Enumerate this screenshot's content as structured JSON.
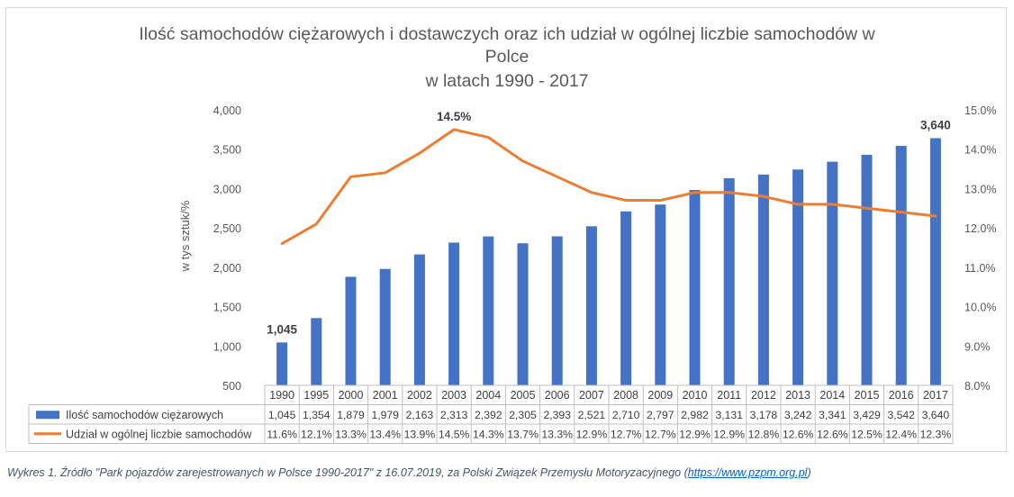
{
  "chart_data": {
    "type": "bar",
    "title_lines": [
      "Ilość samochodów ciężarowych i dostawczych oraz ich udział w ogólnej liczbie samochodów w",
      "Polce",
      "w latach 1990 - 2017"
    ],
    "ylabel": "w tys sztuk/%",
    "categories": [
      "1990",
      "1995",
      "2000",
      "2001",
      "2002",
      "2003",
      "2004",
      "2005",
      "2006",
      "2007",
      "2008",
      "2009",
      "2010",
      "2011",
      "2012",
      "2013",
      "2014",
      "2015",
      "2016",
      "2017"
    ],
    "ylim": [
      500,
      4000
    ],
    "y_ticks": [
      "500",
      "1,000",
      "1,500",
      "2,000",
      "2,500",
      "3,000",
      "3,500",
      "4,000"
    ],
    "y2lim": [
      8.0,
      15.0
    ],
    "y2_ticks": [
      "8.0%",
      "9.0%",
      "10.0%",
      "11.0%",
      "12.0%",
      "13.0%",
      "14.0%",
      "15.0%"
    ],
    "series": [
      {
        "name": "Ilość samochodów ciężarowych",
        "type": "bar",
        "axis": "primary",
        "color": "#4472c4",
        "values": [
          1045,
          1354,
          1879,
          1979,
          2163,
          2313,
          2392,
          2305,
          2393,
          2521,
          2710,
          2797,
          2982,
          3131,
          3178,
          3242,
          3341,
          3429,
          3542,
          3640
        ],
        "table_values": [
          "1,045",
          "1,354",
          "1,879",
          "1,979",
          "2,163",
          "2,313",
          "2,392",
          "2,305",
          "2,393",
          "2,521",
          "2,710",
          "2,797",
          "2,982",
          "3,131",
          "3,178",
          "3,242",
          "3,341",
          "3,429",
          "3,542",
          "3,640"
        ]
      },
      {
        "name": "Udział w ogólnej liczbie samochodów",
        "type": "line",
        "axis": "secondary",
        "color": "#ed7d31",
        "values": [
          11.6,
          12.1,
          13.3,
          13.4,
          13.9,
          14.5,
          14.3,
          13.7,
          13.3,
          12.9,
          12.7,
          12.7,
          12.9,
          12.9,
          12.8,
          12.6,
          12.6,
          12.5,
          12.4,
          12.3
        ],
        "table_values": [
          "11.6%",
          "12.1%",
          "13.3%",
          "13.4%",
          "13.9%",
          "14.5%",
          "14.3%",
          "13.7%",
          "13.3%",
          "12.9%",
          "12.7%",
          "12.7%",
          "12.9%",
          "12.9%",
          "12.8%",
          "12.6%",
          "12.6%",
          "12.5%",
          "12.4%",
          "12.3%"
        ]
      }
    ],
    "annotations": [
      {
        "label": "1,045",
        "series": 0,
        "index": 0
      },
      {
        "label": "3,640",
        "series": 0,
        "index": 19
      },
      {
        "label": "14.5%",
        "series": 1,
        "index": 5
      }
    ],
    "grid": false,
    "legend": "data-table"
  },
  "caption": {
    "text": "Wykres 1. Źródło \"Park pojazdów zarejestrowanych w Polsce 1990-2017\" z 16.07.2019, za Polski Związek Przemysłu Motoryzacyjnego (",
    "link": "https://www.pzpm.org.pl",
    "suffix": ")"
  }
}
